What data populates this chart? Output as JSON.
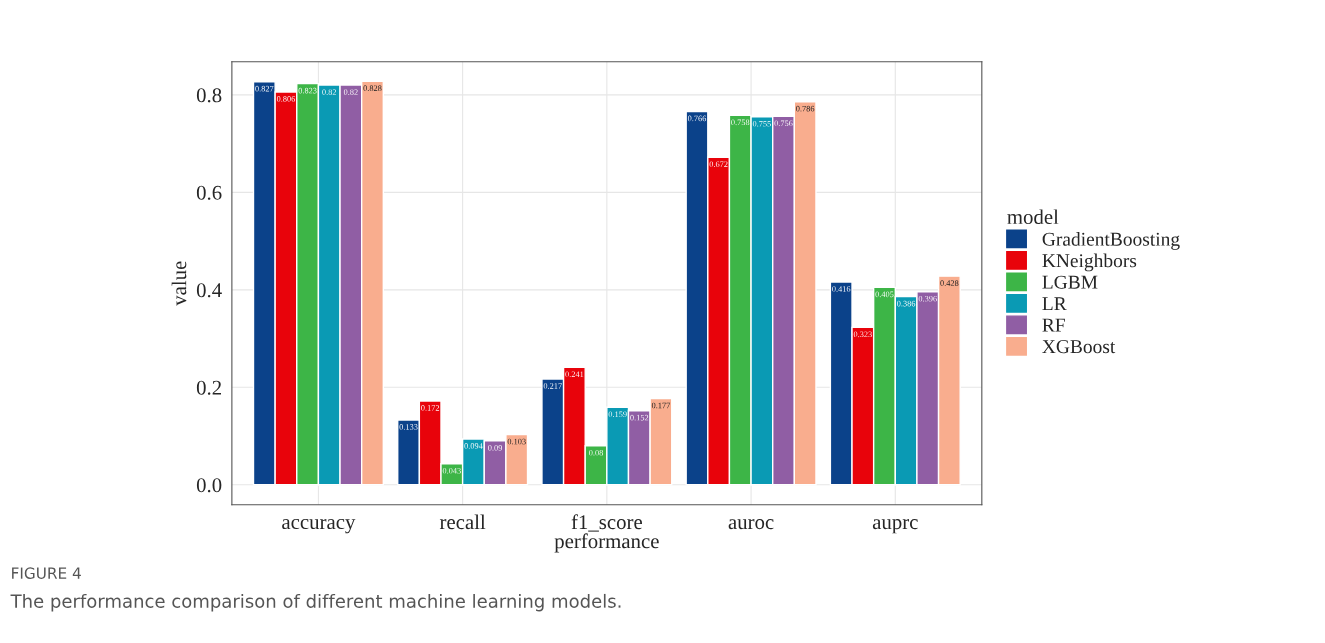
{
  "chart_data": {
    "type": "bar",
    "xlabel": "performance",
    "ylabel": "value",
    "legend_title": "model",
    "categories": [
      "accuracy",
      "recall",
      "f1_score",
      "auroc",
      "auprc"
    ],
    "series": [
      {
        "name": "GradientBoosting",
        "color": "#0b428a",
        "values": [
          0.827,
          0.133,
          0.217,
          0.766,
          0.416
        ]
      },
      {
        "name": "KNeighbors",
        "color": "#e8030b",
        "values": [
          0.806,
          0.172,
          0.241,
          0.672,
          0.323
        ]
      },
      {
        "name": "LGBM",
        "color": "#3db547",
        "values": [
          0.823,
          0.043,
          0.08,
          0.758,
          0.405
        ]
      },
      {
        "name": "LR",
        "color": "#0a9ab4",
        "values": [
          0.82,
          0.094,
          0.159,
          0.755,
          0.386
        ]
      },
      {
        "name": "RF",
        "color": "#905ea4",
        "values": [
          0.82,
          0.09,
          0.152,
          0.756,
          0.396
        ]
      },
      {
        "name": "XGBoost",
        "color": "#f9ad8e",
        "values": [
          0.828,
          0.103,
          0.177,
          0.786,
          0.428
        ]
      }
    ],
    "ylim": [
      -0.041,
      0.868
    ],
    "yticks": [
      {
        "value": 0,
        "label": "0.0"
      },
      {
        "value": 0.2,
        "label": "0.2"
      },
      {
        "value": 0.4,
        "label": "0.4"
      },
      {
        "value": 0.6,
        "label": "0.6"
      },
      {
        "value": 0.8,
        "label": "0.8"
      }
    ],
    "grid": true,
    "legend": "right",
    "data_labels": true,
    "annotations": [
      "FIGURE 4",
      "The performance comparison of different machine learning models."
    ]
  }
}
